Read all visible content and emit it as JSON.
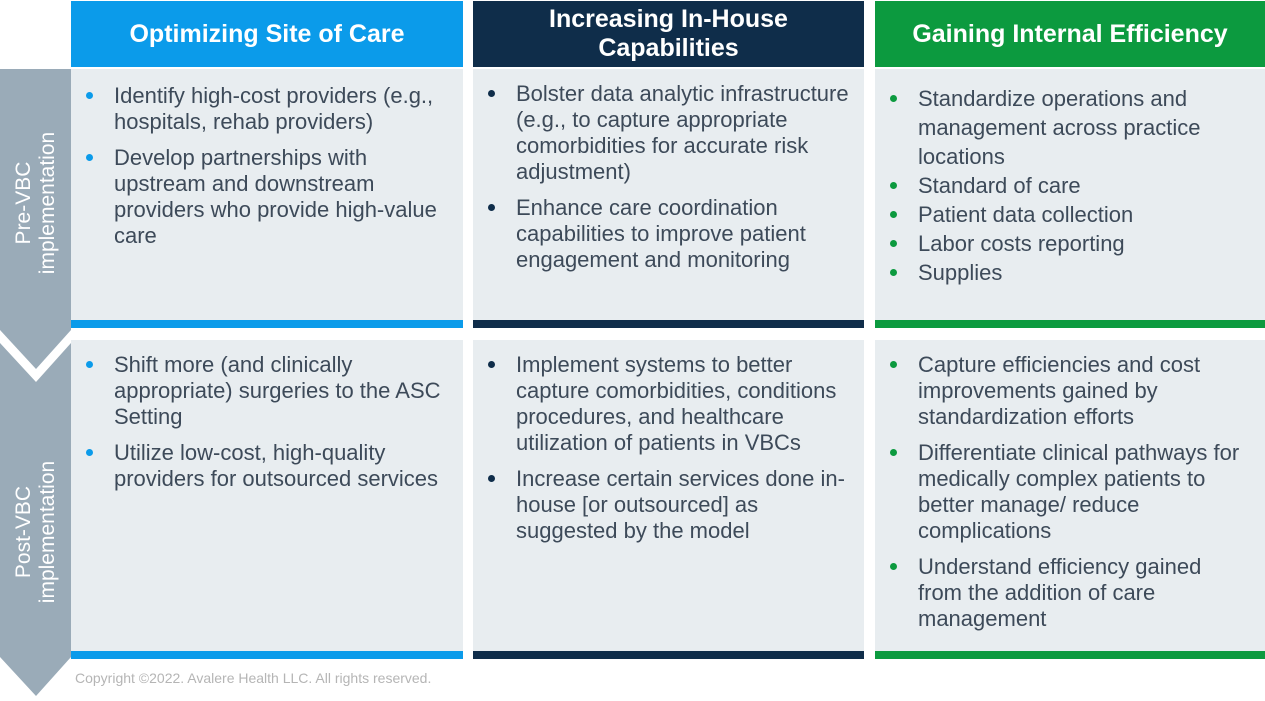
{
  "colors": {
    "blue": "#0b9bea",
    "navy": "#0f2d4a",
    "green": "#0c9a3f",
    "cell_bg": "#e8edf0",
    "chevron": "#9aabb8",
    "text": "#3d4a59"
  },
  "columns": [
    {
      "title": "Optimizing Site of Care",
      "pre": [
        "Identify high-cost providers (e.g., hospitals, rehab providers)",
        "Develop partnerships with upstream and downstream providers who provide high-value care"
      ],
      "post": [
        "Shift more (and clinically appropriate) surgeries to the ASC Setting",
        "Utilize low-cost, high-quality providers for outsourced services"
      ]
    },
    {
      "title": "Increasing In-House Capabilities",
      "pre": [
        "Bolster data analytic infrastructure (e.g., to capture appropriate comorbidities for accurate risk adjustment)",
        "Enhance care coordination capabilities to improve patient engagement and monitoring"
      ],
      "post": [
        "Implement systems to better capture comorbidities, conditions procedures, and healthcare utilization of patients in VBCs",
        "Increase certain services done in-house [or outsourced] as suggested by the model"
      ]
    },
    {
      "title": "Gaining Internal Efficiency",
      "pre": [
        "Standardize operations and management across practice locations",
        "Standard of care",
        "Patient data collection",
        "Labor costs reporting",
        "Supplies"
      ],
      "post": [
        "Capture efficiencies and cost improvements gained by standardization efforts",
        "Differentiate clinical pathways for medically complex patients to better manage/ reduce complications",
        "Understand efficiency gained from the addition of care management"
      ]
    }
  ],
  "rows": {
    "pre_label": [
      "Pre-VBC",
      "implementation"
    ],
    "post_label": [
      "Post-VBC",
      "implementation"
    ]
  },
  "footer": {
    "copyright": "Copyright ©2022. Avalere Health LLC. All rights reserved."
  }
}
